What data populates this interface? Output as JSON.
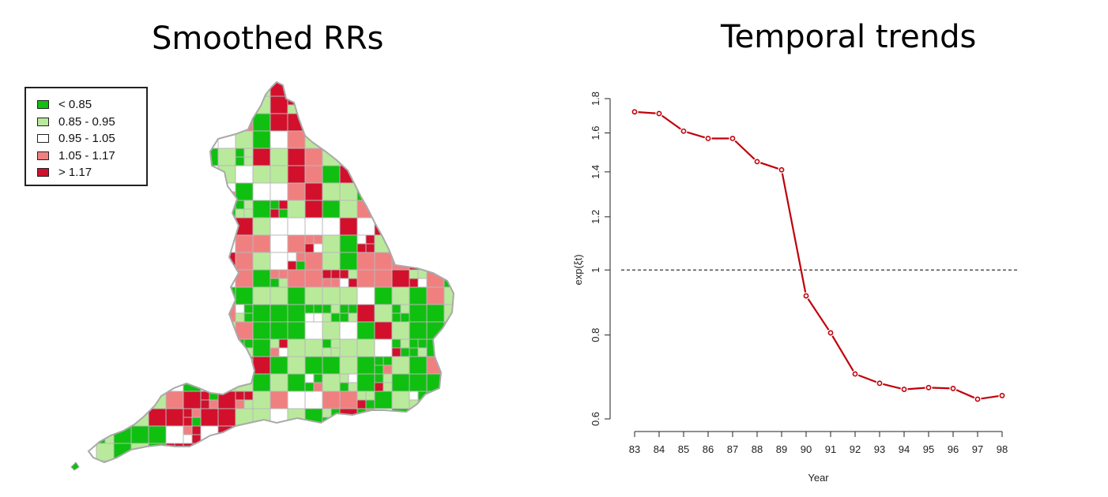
{
  "titles": {
    "left": "Smoothed RRs",
    "right": "Temporal trends"
  },
  "map_legend": {
    "items": [
      {
        "label": "< 0.85",
        "color": "#10c010"
      },
      {
        "label": "0.85 - 0.95",
        "color": "#b9ea9b"
      },
      {
        "label": "0.95 - 1.05",
        "color": "#ffffff"
      },
      {
        "label": "1.05 - 1.17",
        "color": "#f08080"
      },
      {
        "label": "> 1.17",
        "color": "#d2102c"
      }
    ]
  },
  "chart_data": {
    "type": "line",
    "title": "Temporal trends",
    "xlabel": "Year",
    "ylabel": "exp(ξt)",
    "log_scale_y": true,
    "x": [
      "83",
      "84",
      "85",
      "86",
      "87",
      "88",
      "89",
      "90",
      "91",
      "92",
      "93",
      "94",
      "95",
      "96",
      "97",
      "98"
    ],
    "y": [
      1.72,
      1.71,
      1.61,
      1.57,
      1.57,
      1.45,
      1.41,
      0.915,
      0.806,
      0.7,
      0.678,
      0.664,
      0.668,
      0.666,
      0.642,
      0.65
    ],
    "reference_line": 1.0,
    "yticks": [
      0.6,
      0.8,
      1,
      1.2,
      1.4,
      1.6,
      1.8
    ],
    "ytick_labels": [
      "0.6",
      "0.8",
      "1",
      "1.2",
      "1.4",
      "1.6",
      "1.8"
    ],
    "ylim": [
      0.6,
      1.8
    ],
    "line_color": "#c0000a",
    "grid": false
  }
}
